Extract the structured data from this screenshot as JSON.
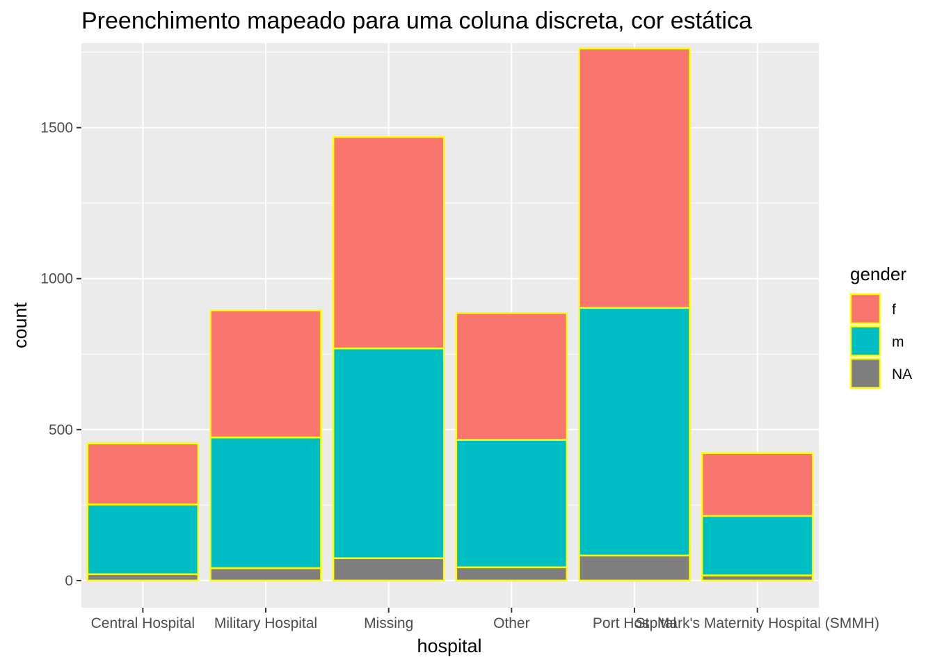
{
  "chart_data": {
    "type": "bar",
    "stacked": true,
    "title": "Preenchimento mapeado para uma coluna discreta, cor estática",
    "xlabel": "hospital",
    "ylabel": "count",
    "categories": [
      "Central Hospital",
      "Military Hospital",
      "Missing",
      "Other",
      "Port Hospital",
      "St. Mark's Maternity Hospital (SMMH)"
    ],
    "series": [
      {
        "name": "NA",
        "values": [
          21,
          41,
          74,
          44,
          83,
          17
        ],
        "color": "#7f7f7f"
      },
      {
        "name": "m",
        "values": [
          231,
          433,
          695,
          422,
          820,
          197
        ],
        "color": "#00bfc4"
      },
      {
        "name": "f",
        "values": [
          202,
          421,
          700,
          420,
          859,
          208
        ],
        "color": "#f8766d"
      }
    ],
    "stack_order_bottom_to_top": [
      "NA",
      "m",
      "f"
    ],
    "bar_outline_color": "#ffff00",
    "panel_background": "#ebebeb",
    "grid": true,
    "ylim": [
      -90,
      1780
    ],
    "yticks": [
      0,
      500,
      1000,
      1500
    ],
    "legend": {
      "title": "gender",
      "position": "right",
      "entries": [
        {
          "label": "f",
          "color": "#f8766d"
        },
        {
          "label": "m",
          "color": "#00bfc4"
        },
        {
          "label": "NA",
          "color": "#7f7f7f"
        }
      ]
    }
  }
}
